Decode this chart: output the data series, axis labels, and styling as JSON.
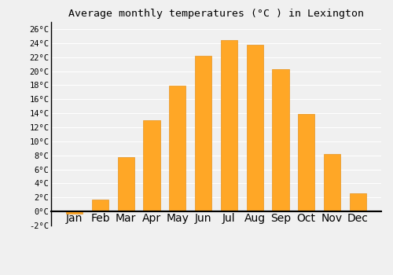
{
  "title": "Average monthly temperatures (°C ) in Lexington",
  "months": [
    "Jan",
    "Feb",
    "Mar",
    "Apr",
    "May",
    "Jun",
    "Jul",
    "Aug",
    "Sep",
    "Oct",
    "Nov",
    "Dec"
  ],
  "values": [
    -0.3,
    1.7,
    7.7,
    13.0,
    17.9,
    22.2,
    24.4,
    23.8,
    20.3,
    13.9,
    8.2,
    2.6
  ],
  "bar_color": "#FFA726",
  "bar_edge_color": "#E69420",
  "ylim": [
    -2,
    27
  ],
  "yticks": [
    -2,
    0,
    2,
    4,
    6,
    8,
    10,
    12,
    14,
    16,
    18,
    20,
    22,
    24,
    26
  ],
  "ytick_labels": [
    "-2°C",
    "0°C",
    "2°C",
    "4°C",
    "6°C",
    "8°C",
    "10°C",
    "12°C",
    "14°C",
    "16°C",
    "18°C",
    "20°C",
    "22°C",
    "24°C",
    "26°C"
  ],
  "background_color": "#f0f0f0",
  "grid_color": "#ffffff",
  "title_fontsize": 9.5,
  "tick_fontsize": 7.5,
  "bar_width": 0.65,
  "zero_line_color": "#000000",
  "spine_color": "#000000"
}
